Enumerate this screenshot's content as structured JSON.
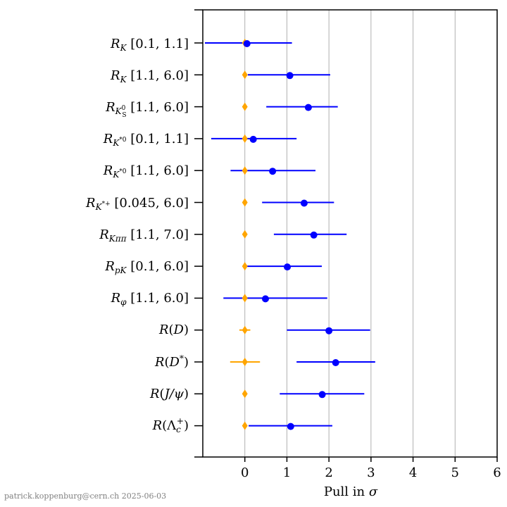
{
  "chart_data": {
    "type": "scatter",
    "xlabel": "Pull in σ",
    "xlim": [
      -1,
      6
    ],
    "xticks": [
      0,
      1,
      2,
      3,
      4,
      5,
      6
    ],
    "grid": "vertical",
    "reference_color": "#FFA500",
    "measurement_color": "#0000FF",
    "rows": [
      {
        "label": "R_K [0.1, 1.1]",
        "pull": 0.05,
        "err_lo": -0.95,
        "err_hi": 1.12,
        "ref_lo": 0,
        "ref_hi": 0
      },
      {
        "label": "R_K [1.1, 6.0]",
        "pull": 1.07,
        "err_lo": 0.07,
        "err_hi": 2.03,
        "ref_lo": 0,
        "ref_hi": 0
      },
      {
        "label": "R_{K_S^0} [1.1, 6.0]",
        "pull": 1.51,
        "err_lo": 0.51,
        "err_hi": 2.21,
        "ref_lo": 0,
        "ref_hi": 0
      },
      {
        "label": "R_{K*0} [0.1, 1.1]",
        "pull": 0.2,
        "err_lo": -0.8,
        "err_hi": 1.23,
        "ref_lo": -0.07,
        "ref_hi": 0.07
      },
      {
        "label": "R_{K*0} [1.1, 6.0]",
        "pull": 0.66,
        "err_lo": -0.34,
        "err_hi": 1.68,
        "ref_lo": 0,
        "ref_hi": 0
      },
      {
        "label": "R_{K*+} [0.045, 6.0]",
        "pull": 1.41,
        "err_lo": 0.41,
        "err_hi": 2.12,
        "ref_lo": 0,
        "ref_hi": 0
      },
      {
        "label": "R_{Kππ} [1.1, 7.0]",
        "pull": 1.64,
        "err_lo": 0.69,
        "err_hi": 2.42,
        "ref_lo": 0,
        "ref_hi": 0
      },
      {
        "label": "R_{pK} [0.1, 6.0]",
        "pull": 1.01,
        "err_lo": 0.04,
        "err_hi": 1.83,
        "ref_lo": 0,
        "ref_hi": 0
      },
      {
        "label": "R_φ [1.1, 6.0]",
        "pull": 0.49,
        "err_lo": -0.51,
        "err_hi": 1.96,
        "ref_lo": 0,
        "ref_hi": 0
      },
      {
        "label": "R(D)",
        "pull": 2.0,
        "err_lo": 1.0,
        "err_hi": 2.98,
        "ref_lo": -0.13,
        "ref_hi": 0.13
      },
      {
        "label": "R(D*)",
        "pull": 2.16,
        "err_lo": 1.23,
        "err_hi": 3.1,
        "ref_lo": -0.35,
        "ref_hi": 0.36
      },
      {
        "label": "R(J/ψ)",
        "pull": 1.84,
        "err_lo": 0.83,
        "err_hi": 2.84,
        "ref_lo": 0,
        "ref_hi": 0
      },
      {
        "label": "R(Λc+)",
        "pull": 1.09,
        "err_lo": 0.09,
        "err_hi": 2.08,
        "ref_lo": 0,
        "ref_hi": 0
      }
    ]
  },
  "watermark": "patrick.koppenburg@cern.ch 2025-06-03"
}
